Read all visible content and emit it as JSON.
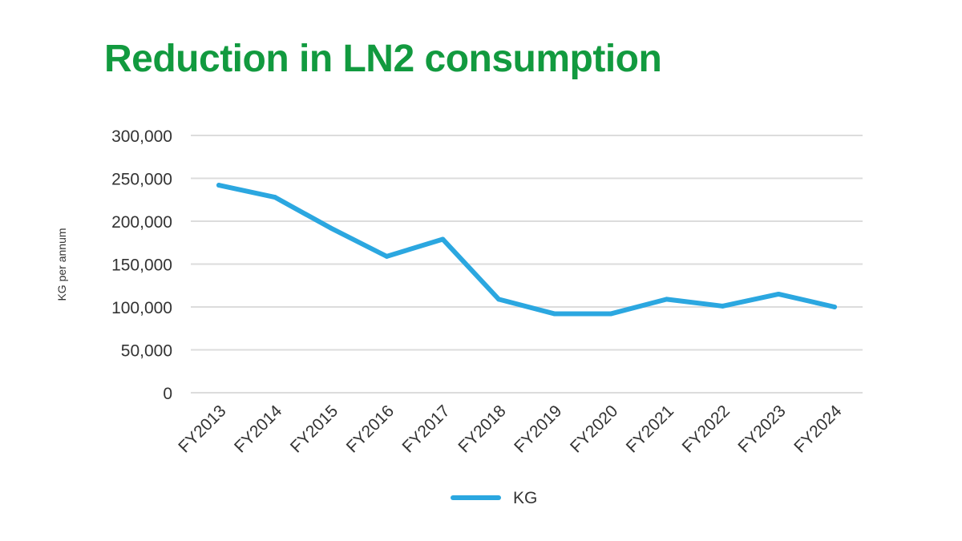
{
  "colors": {
    "title": "#129a3f",
    "series": "#2ba7e0",
    "grid": "#dcdcdc",
    "text": "#333333"
  },
  "chart_data": {
    "type": "line",
    "title": "Reduction in LN2 consumption",
    "xlabel": "",
    "ylabel": "KG per annum",
    "categories": [
      "FY2013",
      "FY2014",
      "FY2015",
      "FY2016",
      "FY2017",
      "FY2018",
      "FY2019",
      "FY2020",
      "FY2021",
      "FY2022",
      "FY2023",
      "FY2024"
    ],
    "series": [
      {
        "name": "KG",
        "values": [
          242000,
          228000,
          192000,
          159000,
          179000,
          109000,
          92000,
          92000,
          109000,
          101000,
          115000,
          100000
        ]
      }
    ],
    "ylim": [
      0,
      300000
    ],
    "yticks": [
      "0",
      "50,000",
      "100,000",
      "150,000",
      "200,000",
      "250,000",
      "300,000"
    ],
    "grid": true,
    "legend": "bottom-center"
  }
}
